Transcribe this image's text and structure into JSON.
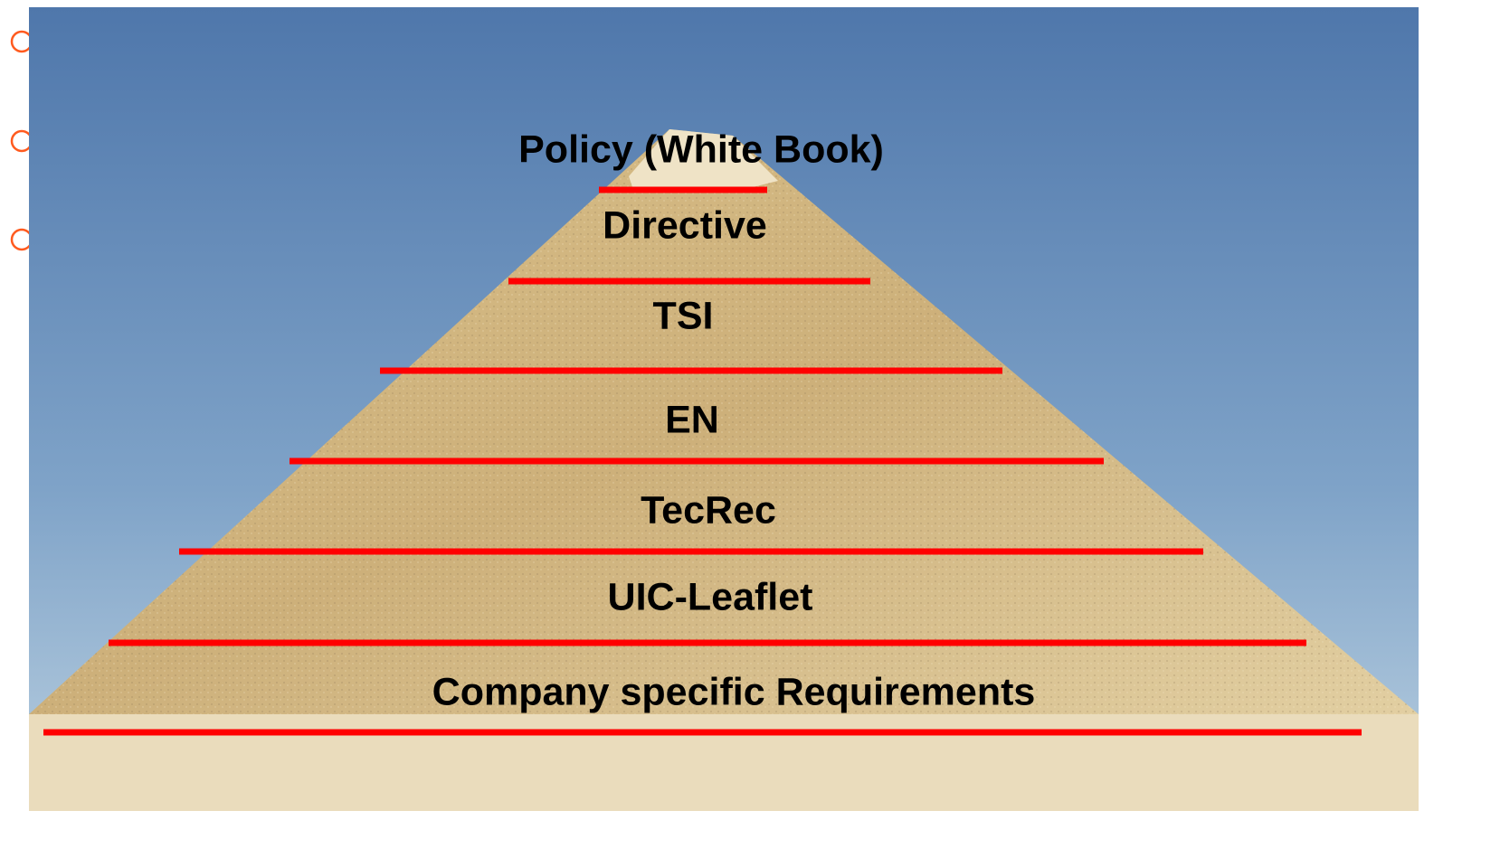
{
  "levels": [
    "Policy (White Book)",
    "Directive",
    "TSI",
    "EN",
    "TecRec",
    "UIC-Leaflet",
    "Company specific Requirements"
  ]
}
